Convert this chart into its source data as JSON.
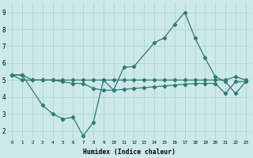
{
  "xlabel": "Humidex (Indice chaleur)",
  "line_color": "#2d7b73",
  "bg_color": "#cce8e8",
  "grid_color": "#aacfcf",
  "xlim": [
    -0.5,
    23.5
  ],
  "ylim": [
    1.5,
    9.6
  ],
  "yticks": [
    2,
    3,
    4,
    5,
    6,
    7,
    8,
    9
  ],
  "xticks": [
    0,
    1,
    2,
    3,
    4,
    5,
    6,
    7,
    8,
    9,
    10,
    11,
    12,
    13,
    14,
    15,
    16,
    17,
    18,
    19,
    20,
    21,
    22,
    23
  ],
  "series1_x": [
    0,
    1,
    2,
    3,
    4,
    5,
    6,
    7,
    8,
    9,
    10,
    11,
    12,
    13,
    14,
    15,
    16,
    17,
    18,
    19,
    20,
    21,
    22,
    23
  ],
  "series1_y": [
    5.3,
    5.3,
    5.0,
    5.0,
    5.0,
    5.0,
    5.0,
    5.0,
    5.0,
    5.0,
    5.0,
    5.0,
    5.0,
    5.0,
    5.0,
    5.0,
    5.0,
    5.0,
    5.0,
    5.0,
    5.0,
    5.0,
    5.2,
    5.0
  ],
  "series2_x": [
    0,
    1,
    3,
    4,
    5,
    6,
    7,
    8,
    9,
    10,
    11,
    12,
    14,
    15,
    16,
    17,
    18,
    19,
    20,
    21,
    22,
    23
  ],
  "series2_y": [
    5.3,
    5.3,
    3.5,
    3.0,
    2.7,
    2.8,
    1.7,
    2.5,
    5.0,
    4.4,
    5.75,
    5.8,
    7.2,
    7.5,
    8.3,
    9.0,
    7.5,
    6.3,
    5.2,
    4.9,
    4.2,
    4.9
  ],
  "series3_x": [
    0,
    1,
    2,
    3,
    4,
    5,
    6,
    7,
    8,
    9,
    10,
    11,
    12,
    13,
    14,
    15,
    16,
    17,
    18,
    19,
    20,
    21,
    22,
    23
  ],
  "series3_y": [
    5.3,
    5.0,
    5.0,
    5.0,
    5.0,
    4.9,
    4.8,
    4.8,
    4.5,
    4.4,
    4.4,
    4.45,
    4.5,
    4.55,
    4.6,
    4.65,
    4.7,
    4.75,
    4.8,
    4.8,
    4.8,
    4.2,
    4.9,
    4.9
  ]
}
